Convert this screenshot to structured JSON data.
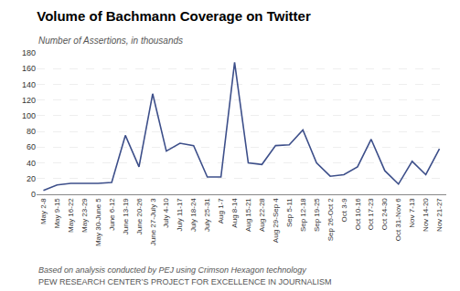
{
  "chart_data": {
    "type": "line",
    "title": "Volume of Bachmann Coverage on Twitter",
    "subtitle": "Number of Assertions, in thousands",
    "annotations": [
      "Based on analysis conducted by PEJ using Crimson Hexagon technology",
      "PEW RESEARCH CENTER’S PROJECT FOR EXCELLENCE IN JOURNALISM"
    ],
    "categories": [
      "May 2-8",
      "May 9-15",
      "May 16-22",
      "May 23-29",
      "May 30-June 5",
      "June 6-12",
      "June 13-19",
      "June 20-26",
      "June 27-July 3",
      "July 4-10",
      "July 11-17",
      "July 18-24",
      "July 25-31",
      "Aug 1-7",
      "Aug 8-14",
      "Aug 15-21",
      "Aug 22-28",
      "Aug 29-Sep 4",
      "Sep 5-11",
      "Sep 12-18",
      "Sep 19-25",
      "Sep 26-Oct 2",
      "Oct 3-9",
      "Oct 10-16",
      "Oct 17-23",
      "Oct 24-30",
      "Oct 31-Nov 6",
      "Nov 7-13",
      "Nov 14-20",
      "Nov 21-27"
    ],
    "values": [
      5,
      12,
      14,
      14,
      14,
      15,
      75,
      35,
      128,
      55,
      65,
      62,
      22,
      22,
      168,
      40,
      38,
      62,
      63,
      82,
      40,
      23,
      25,
      35,
      70,
      30,
      13,
      42,
      25,
      58
    ],
    "color": "#3d4f8a",
    "ylim": [
      0,
      180
    ],
    "yticks": [
      0,
      20,
      40,
      60,
      80,
      100,
      120,
      140,
      160,
      180
    ],
    "grid": true
  }
}
